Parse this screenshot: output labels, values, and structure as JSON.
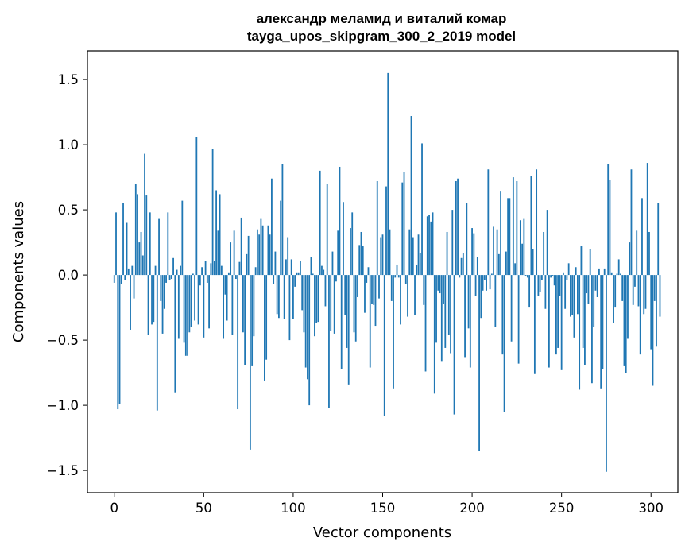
{
  "chart_data": {
    "type": "bar",
    "title_line1": "александр меламид и виталий комар",
    "title_line2": "tayga_upos_skipgram_300_2_2019 model",
    "xlabel": "Vector components",
    "ylabel": "Components values",
    "xlim": [
      -15,
      315
    ],
    "ylim": [
      -1.67,
      1.72
    ],
    "xticks": [
      0,
      50,
      100,
      150,
      200,
      250,
      300
    ],
    "xtick_labels": [
      "0",
      "50",
      "100",
      "150",
      "200",
      "250",
      "300"
    ],
    "yticks": [
      -1.5,
      -1.0,
      -0.5,
      0.0,
      0.5,
      1.0,
      1.5
    ],
    "ytick_labels": [
      "−1.5",
      "−1.0",
      "−0.5",
      "0.0",
      "0.5",
      "1.0",
      "1.5"
    ],
    "bar_color": "#1f77b4",
    "values": [
      -0.06,
      0.48,
      -1.03,
      -0.99,
      -0.07,
      0.55,
      -0.04,
      0.4,
      0.05,
      -0.42,
      0.07,
      -0.18,
      0.7,
      0.62,
      0.25,
      0.33,
      0.15,
      0.93,
      0.61,
      -0.46,
      0.48,
      -0.38,
      -0.36,
      0.07,
      -1.04,
      0.43,
      -0.2,
      -0.45,
      -0.26,
      -0.06,
      0.48,
      -0.04,
      -0.03,
      0.13,
      -0.9,
      0.04,
      -0.49,
      0.07,
      0.57,
      -0.52,
      -0.62,
      -0.62,
      -0.44,
      -0.4,
      0.01,
      -0.35,
      1.06,
      -0.38,
      -0.08,
      0.06,
      -0.48,
      0.11,
      -0.06,
      -0.41,
      0.09,
      0.97,
      0.11,
      0.65,
      0.34,
      0.62,
      0.07,
      -0.49,
      -0.15,
      -0.35,
      0.02,
      0.25,
      -0.46,
      0.34,
      -0.03,
      -1.03,
      0.1,
      0.44,
      -0.44,
      -0.69,
      0.16,
      0.3,
      -1.34,
      -0.7,
      -0.47,
      0.06,
      0.35,
      0.31,
      0.43,
      0.38,
      -0.81,
      -0.65,
      0.38,
      0.31,
      0.74,
      -0.07,
      0.18,
      -0.3,
      -0.33,
      0.57,
      0.85,
      -0.34,
      0.12,
      0.29,
      -0.5,
      0.12,
      -0.34,
      -0.09,
      0.02,
      0.02,
      0.11,
      -0.27,
      -0.44,
      -0.71,
      -0.8,
      -1.0,
      0.14,
      0.01,
      -0.47,
      -0.37,
      -0.36,
      0.8,
      0.07,
      0.04,
      -0.24,
      0.7,
      -1.02,
      -0.43,
      0.18,
      -0.45,
      -0.05,
      0.34,
      0.83,
      -0.72,
      0.56,
      -0.31,
      -0.56,
      -0.84,
      0.36,
      0.48,
      -0.44,
      -0.51,
      -0.17,
      0.23,
      0.33,
      0.22,
      -0.29,
      -0.06,
      0.06,
      -0.71,
      -0.22,
      -0.23,
      -0.39,
      0.72,
      -0.18,
      0.29,
      0.31,
      -1.08,
      0.68,
      1.55,
      0.35,
      -0.2,
      -0.87,
      -0.02,
      0.08,
      -0.02,
      -0.38,
      0.71,
      0.79,
      -0.07,
      -0.32,
      0.35,
      1.22,
      0.29,
      -0.31,
      0.08,
      0.31,
      0.17,
      1.01,
      -0.23,
      -0.74,
      0.45,
      0.46,
      0.41,
      0.48,
      -0.91,
      -0.52,
      -0.12,
      -0.14,
      -0.66,
      -0.22,
      -0.56,
      0.33,
      -0.46,
      -0.6,
      0.5,
      -1.07,
      0.72,
      0.74,
      -0.02,
      0.13,
      0.17,
      -0.63,
      0.55,
      -0.41,
      -0.71,
      0.36,
      0.32,
      -0.16,
      0.14,
      -1.35,
      -0.33,
      -0.12,
      -0.04,
      -0.12,
      0.81,
      -0.11,
      0.01,
      0.37,
      -0.4,
      0.35,
      0.16,
      0.64,
      -0.61,
      -1.05,
      0.18,
      0.59,
      0.59,
      -0.51,
      0.75,
      0.09,
      0.72,
      -0.68,
      0.42,
      0.24,
      0.43,
      -0.01,
      -0.02,
      -0.25,
      0.76,
      0.2,
      -0.76,
      0.81,
      -0.16,
      -0.13,
      -0.04,
      0.33,
      -0.26,
      0.5,
      -0.71,
      -0.02,
      -0.01,
      -0.08,
      -0.61,
      -0.56,
      -0.16,
      -0.73,
      0.02,
      -0.26,
      -0.04,
      0.09,
      -0.32,
      -0.31,
      -0.48,
      0.06,
      -0.3,
      -0.88,
      0.22,
      -0.56,
      -0.69,
      -0.14,
      -0.22,
      0.2,
      -0.83,
      -0.4,
      -0.12,
      -0.17,
      0.05,
      -0.87,
      -0.72,
      0.05,
      -1.51,
      0.85,
      0.73,
      0.02,
      -0.37,
      -0.25,
      0.01,
      0.12,
      0.01,
      -0.2,
      -0.7,
      -0.75,
      -0.49,
      0.25,
      0.81,
      -0.23,
      -0.09,
      0.34,
      -0.24,
      -0.61,
      0.59,
      -0.3,
      -0.26,
      0.86,
      0.33,
      -0.57,
      -0.85,
      -0.2,
      -0.55,
      0.55,
      -0.32
    ]
  }
}
